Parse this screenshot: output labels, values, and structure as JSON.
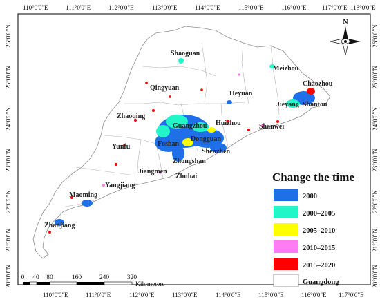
{
  "map": {
    "longitude_ticks_top": [
      "110°0'0\"E",
      "111°0'0\"E",
      "112°0'0\"E",
      "113°0'0\"E",
      "114°0'0\"E",
      "115°0'0\"E",
      "116°0'0\"E",
      "117°0'0\"E",
      "118°0'0\"E"
    ],
    "longitude_ticks_bottom": [
      "110°0'0\"E",
      "111°0'0\"E",
      "112°0'0\"E",
      "113°0'0\"E",
      "114°0'0\"E",
      "115°0'0\"E",
      "116°0'0\"E",
      "117°0'0\"E"
    ],
    "latitude_ticks_left": [
      "26°0'0\"N",
      "25°0'0\"N",
      "24°0'0\"N",
      "23°0'0\"N",
      "22°0'0\"N",
      "21°0'0\"N",
      "20°0'0\"N"
    ],
    "latitude_ticks_right": [
      "26°0'0\"N",
      "25°0'0\"N",
      "24°0'0\"N",
      "23°0'0\"N",
      "22°0'0\"N",
      "21°0'0\"N",
      "20°0'0\"N"
    ],
    "cities": {
      "shaoguan": "Shaoguan",
      "meizhou": "Meizhou",
      "qingyuan": "Qingyuan",
      "heyuan": "Heyuan",
      "chaozhou": "Chaozhou",
      "jieyang": "Jieyang",
      "shantou": "Shantou",
      "zhaoqing": "Zhaoqing",
      "guangzhou": "Guangzhou",
      "huizhou": "Huizhou",
      "shanwei": "Shanwei",
      "yunfu": "Yunfu",
      "foshan": "Foshan",
      "dongguan": "Dongguan",
      "shenzhen": "Shenzhen",
      "zhongshan": "Zhongshan",
      "jiangmen": "Jiangmen",
      "zhuhai": "Zhuhai",
      "yangjiang": "Yangjiang",
      "maoming": "Maoming",
      "zhanjiang": "Zhanjiang"
    },
    "north_label": "N",
    "scale": {
      "ticks": [
        "0",
        "40",
        "80",
        "160",
        "240",
        "320"
      ],
      "unit": "Kilometers"
    },
    "legend": {
      "title": "Change the time",
      "items": [
        {
          "label": "2000",
          "color": "#1f6fe8"
        },
        {
          "label": "2000–2005",
          "color": "#22f5c8"
        },
        {
          "label": "2005–2010",
          "color": "#ffff00"
        },
        {
          "label": "2010–2015",
          "color": "#ff7cf2"
        },
        {
          "label": "2015–2020",
          "color": "#ff0000"
        },
        {
          "label": "Guangdong",
          "color": "#ffffff"
        }
      ]
    }
  }
}
